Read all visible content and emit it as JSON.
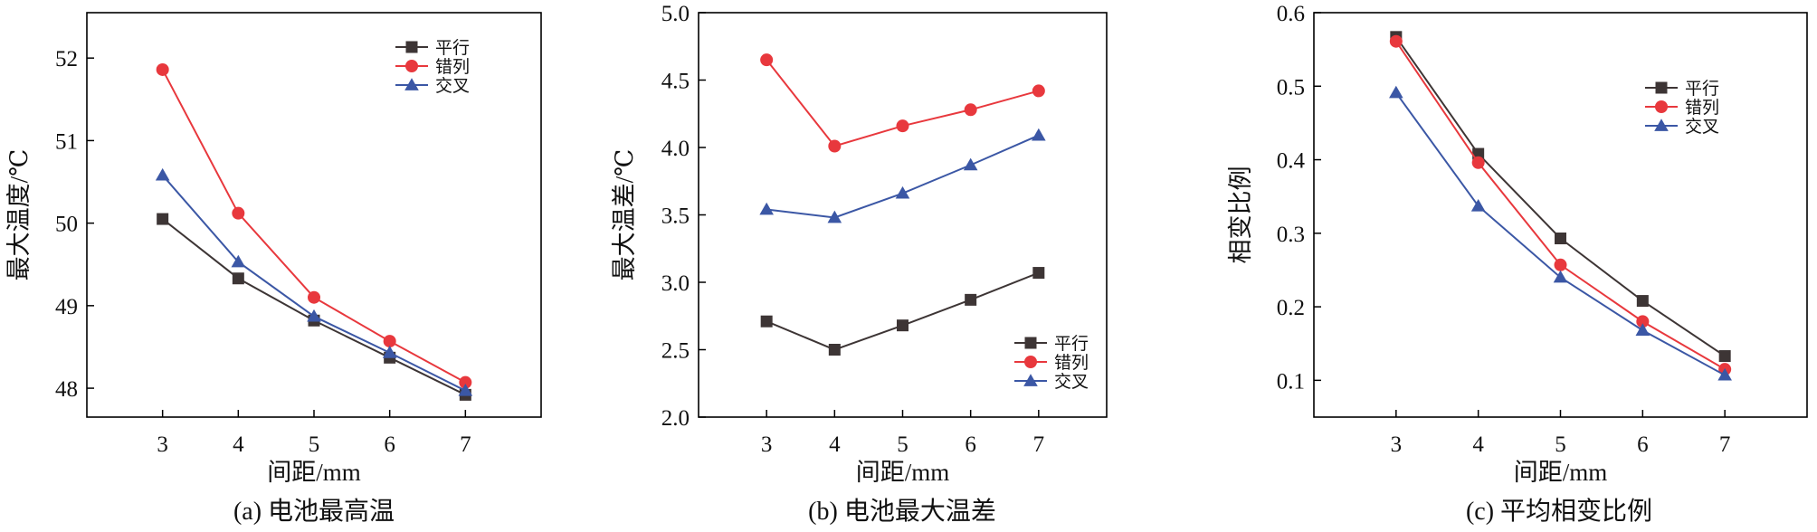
{
  "colors": {
    "平行": "#3d3535",
    "错列": "#e8383d",
    "交叉": "#3b57a5",
    "axis": "#000000"
  },
  "chart_data": [
    {
      "type": "line",
      "caption": "(a) 电池最高温",
      "xlabel": "间距/mm",
      "ylabel": "最大温度/℃",
      "x": [
        3,
        4,
        5,
        6,
        7
      ],
      "xlim": [
        2,
        8
      ],
      "ylim": [
        47.65,
        52.55
      ],
      "yticks": [
        48,
        49,
        50,
        51,
        52
      ],
      "ytick_labels": [
        "48",
        "49",
        "50",
        "51",
        "52"
      ],
      "legend_position": "top-right",
      "series": [
        {
          "name": "平行",
          "marker": "square",
          "values": [
            50.05,
            49.33,
            48.82,
            48.37,
            47.92
          ]
        },
        {
          "name": "错列",
          "marker": "circle",
          "values": [
            51.86,
            50.12,
            49.1,
            48.57,
            48.07
          ]
        },
        {
          "name": "交叉",
          "marker": "triangle",
          "values": [
            50.58,
            49.53,
            48.87,
            48.43,
            47.97
          ]
        }
      ]
    },
    {
      "type": "line",
      "caption": "(b) 电池最大温差",
      "xlabel": "间距/mm",
      "ylabel": "最大温差/℃",
      "x": [
        3,
        4,
        5,
        6,
        7
      ],
      "xlim": [
        2,
        8
      ],
      "ylim": [
        2.0,
        5.0
      ],
      "yticks": [
        2.0,
        2.5,
        3.0,
        3.5,
        4.0,
        4.5,
        5.0
      ],
      "ytick_labels": [
        "2.0",
        "2.5",
        "3.0",
        "3.5",
        "4.0",
        "4.5",
        "5.0"
      ],
      "legend_position": "bottom-right",
      "series": [
        {
          "name": "平行",
          "marker": "square",
          "values": [
            2.71,
            2.5,
            2.68,
            2.87,
            3.07
          ]
        },
        {
          "name": "错列",
          "marker": "circle",
          "values": [
            4.65,
            4.01,
            4.16,
            4.28,
            4.42
          ]
        },
        {
          "name": "交叉",
          "marker": "triangle",
          "values": [
            3.54,
            3.48,
            3.66,
            3.87,
            4.09
          ]
        }
      ]
    },
    {
      "type": "line",
      "caption": "(c) 平均相变比例",
      "xlabel": "间距/mm",
      "ylabel": "相变比例",
      "x": [
        3,
        4,
        5,
        6,
        7
      ],
      "xlim": [
        2,
        8
      ],
      "ylim": [
        0.05,
        0.6
      ],
      "yticks": [
        0.1,
        0.2,
        0.3,
        0.4,
        0.5,
        0.6
      ],
      "ytick_labels": [
        "0.1",
        "0.2",
        "0.3",
        "0.4",
        "0.5",
        "0.6"
      ],
      "legend_position": "top-right",
      "series": [
        {
          "name": "平行",
          "marker": "square",
          "values": [
            0.567,
            0.408,
            0.293,
            0.208,
            0.133
          ]
        },
        {
          "name": "错列",
          "marker": "circle",
          "values": [
            0.561,
            0.396,
            0.257,
            0.18,
            0.115
          ]
        },
        {
          "name": "交叉",
          "marker": "triangle",
          "values": [
            0.491,
            0.337,
            0.24,
            0.168,
            0.107
          ]
        }
      ]
    }
  ]
}
